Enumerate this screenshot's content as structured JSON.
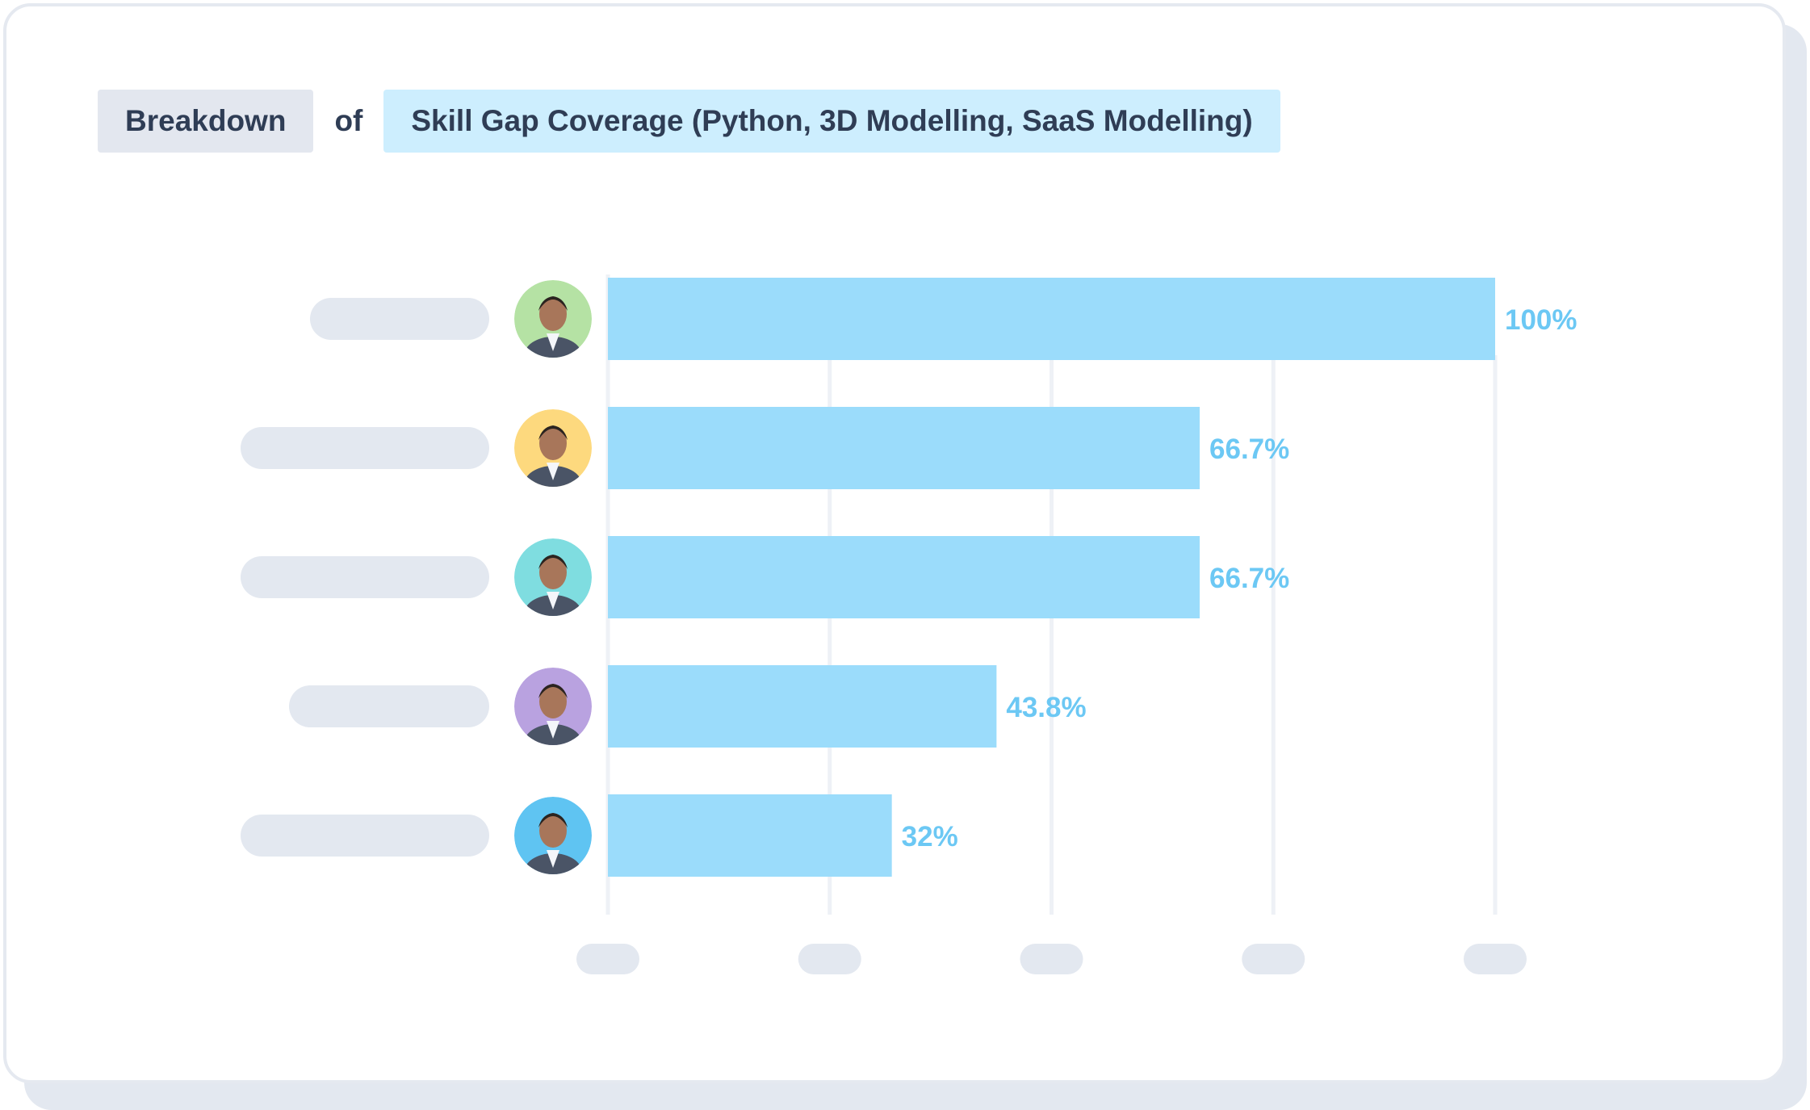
{
  "header": {
    "breakdown_label": "Breakdown",
    "of_label": "of",
    "metric_label": "Skill Gap Coverage (Python, 3D Modelling, SaaS Modelling)"
  },
  "colors": {
    "bar": "#9bdcfb",
    "value_label": "#6cc8f4",
    "grid": "#eef1f6",
    "placeholder": "#e3e8f0",
    "title_text": "#2f3d55"
  },
  "chart_data": {
    "type": "bar",
    "orientation": "horizontal",
    "categories": [
      "",
      "",
      "",
      "",
      ""
    ],
    "values": [
      100,
      66.7,
      66.7,
      43.8,
      32
    ],
    "value_labels": [
      "100%",
      "66.7%",
      "66.7%",
      "43.8%",
      "32%"
    ],
    "xlim": [
      0,
      100
    ],
    "x_tick_labels": [
      "",
      "",
      "",
      "",
      ""
    ],
    "grid": true,
    "avatar_backgrounds": [
      "#b5e2a4",
      "#fdd97e",
      "#7fdde0",
      "#b9a2e0",
      "#5fc4f2"
    ],
    "avatar_icons": [
      "person-avatar-icon",
      "person-avatar-icon",
      "person-avatar-icon",
      "person-avatar-icon",
      "person-avatar-icon"
    ]
  }
}
